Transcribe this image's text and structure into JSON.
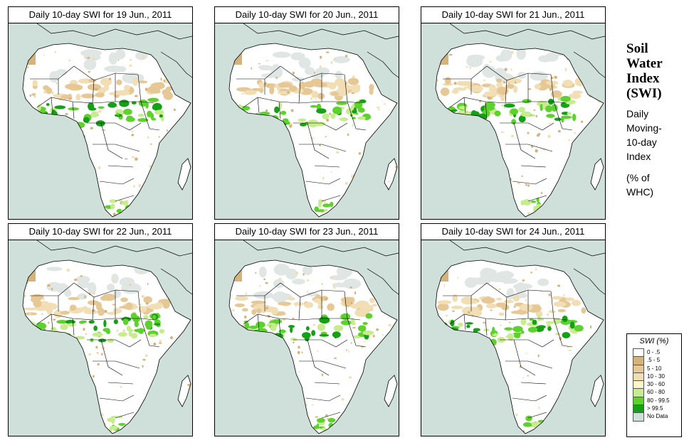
{
  "panels": [
    {
      "title": "Daily 10-day SWI for  19 Jun., 2011"
    },
    {
      "title": "Daily 10-day SWI for  20 Jun., 2011"
    },
    {
      "title": "Daily 10-day SWI for  21 Jun., 2011"
    },
    {
      "title": "Daily 10-day SWI for  22 Jun., 2011"
    },
    {
      "title": "Daily 10-day SWI for  23 Jun., 2011"
    },
    {
      "title": "Daily 10-day SWI for  24 Jun., 2011"
    }
  ],
  "side_title": {
    "line1": "Soil",
    "line2": "Water",
    "line3": "Index",
    "line4": "(SWI)"
  },
  "side_desc": {
    "line1": "Daily",
    "line2": "Moving-",
    "line3": "10-day",
    "line4": "Index",
    "line5": "(% of",
    "line6": "WHC)"
  },
  "legend": {
    "title": "SWI (%)",
    "items": [
      {
        "label": "0 - .5",
        "color": "#ffffff"
      },
      {
        "label": ".5 - 5",
        "color": "#d4b47c"
      },
      {
        "label": "5 - 10",
        "color": "#e6c896"
      },
      {
        "label": "10 - 30",
        "color": "#f2deb4"
      },
      {
        "label": "30 - 60",
        "color": "#fbf5cc"
      },
      {
        "label": "60 - 80",
        "color": "#c6ec8c"
      },
      {
        "label": "80 - 99.5",
        "color": "#5ed22c"
      },
      {
        "label": "> 99.5",
        "color": "#16a016"
      },
      {
        "label": "No Data",
        "color": "#cfe0db"
      }
    ]
  },
  "colors": {
    "ocean": "#cfe0db",
    "land": "#ffffff",
    "dry": "#e6c896",
    "very_dry": "#d4b47c",
    "moderate": "#f2deb4",
    "wet": "#c6ec8c",
    "very_wet": "#5ed22c",
    "saturated": "#16a016",
    "nodata": "#dfe6e4"
  }
}
